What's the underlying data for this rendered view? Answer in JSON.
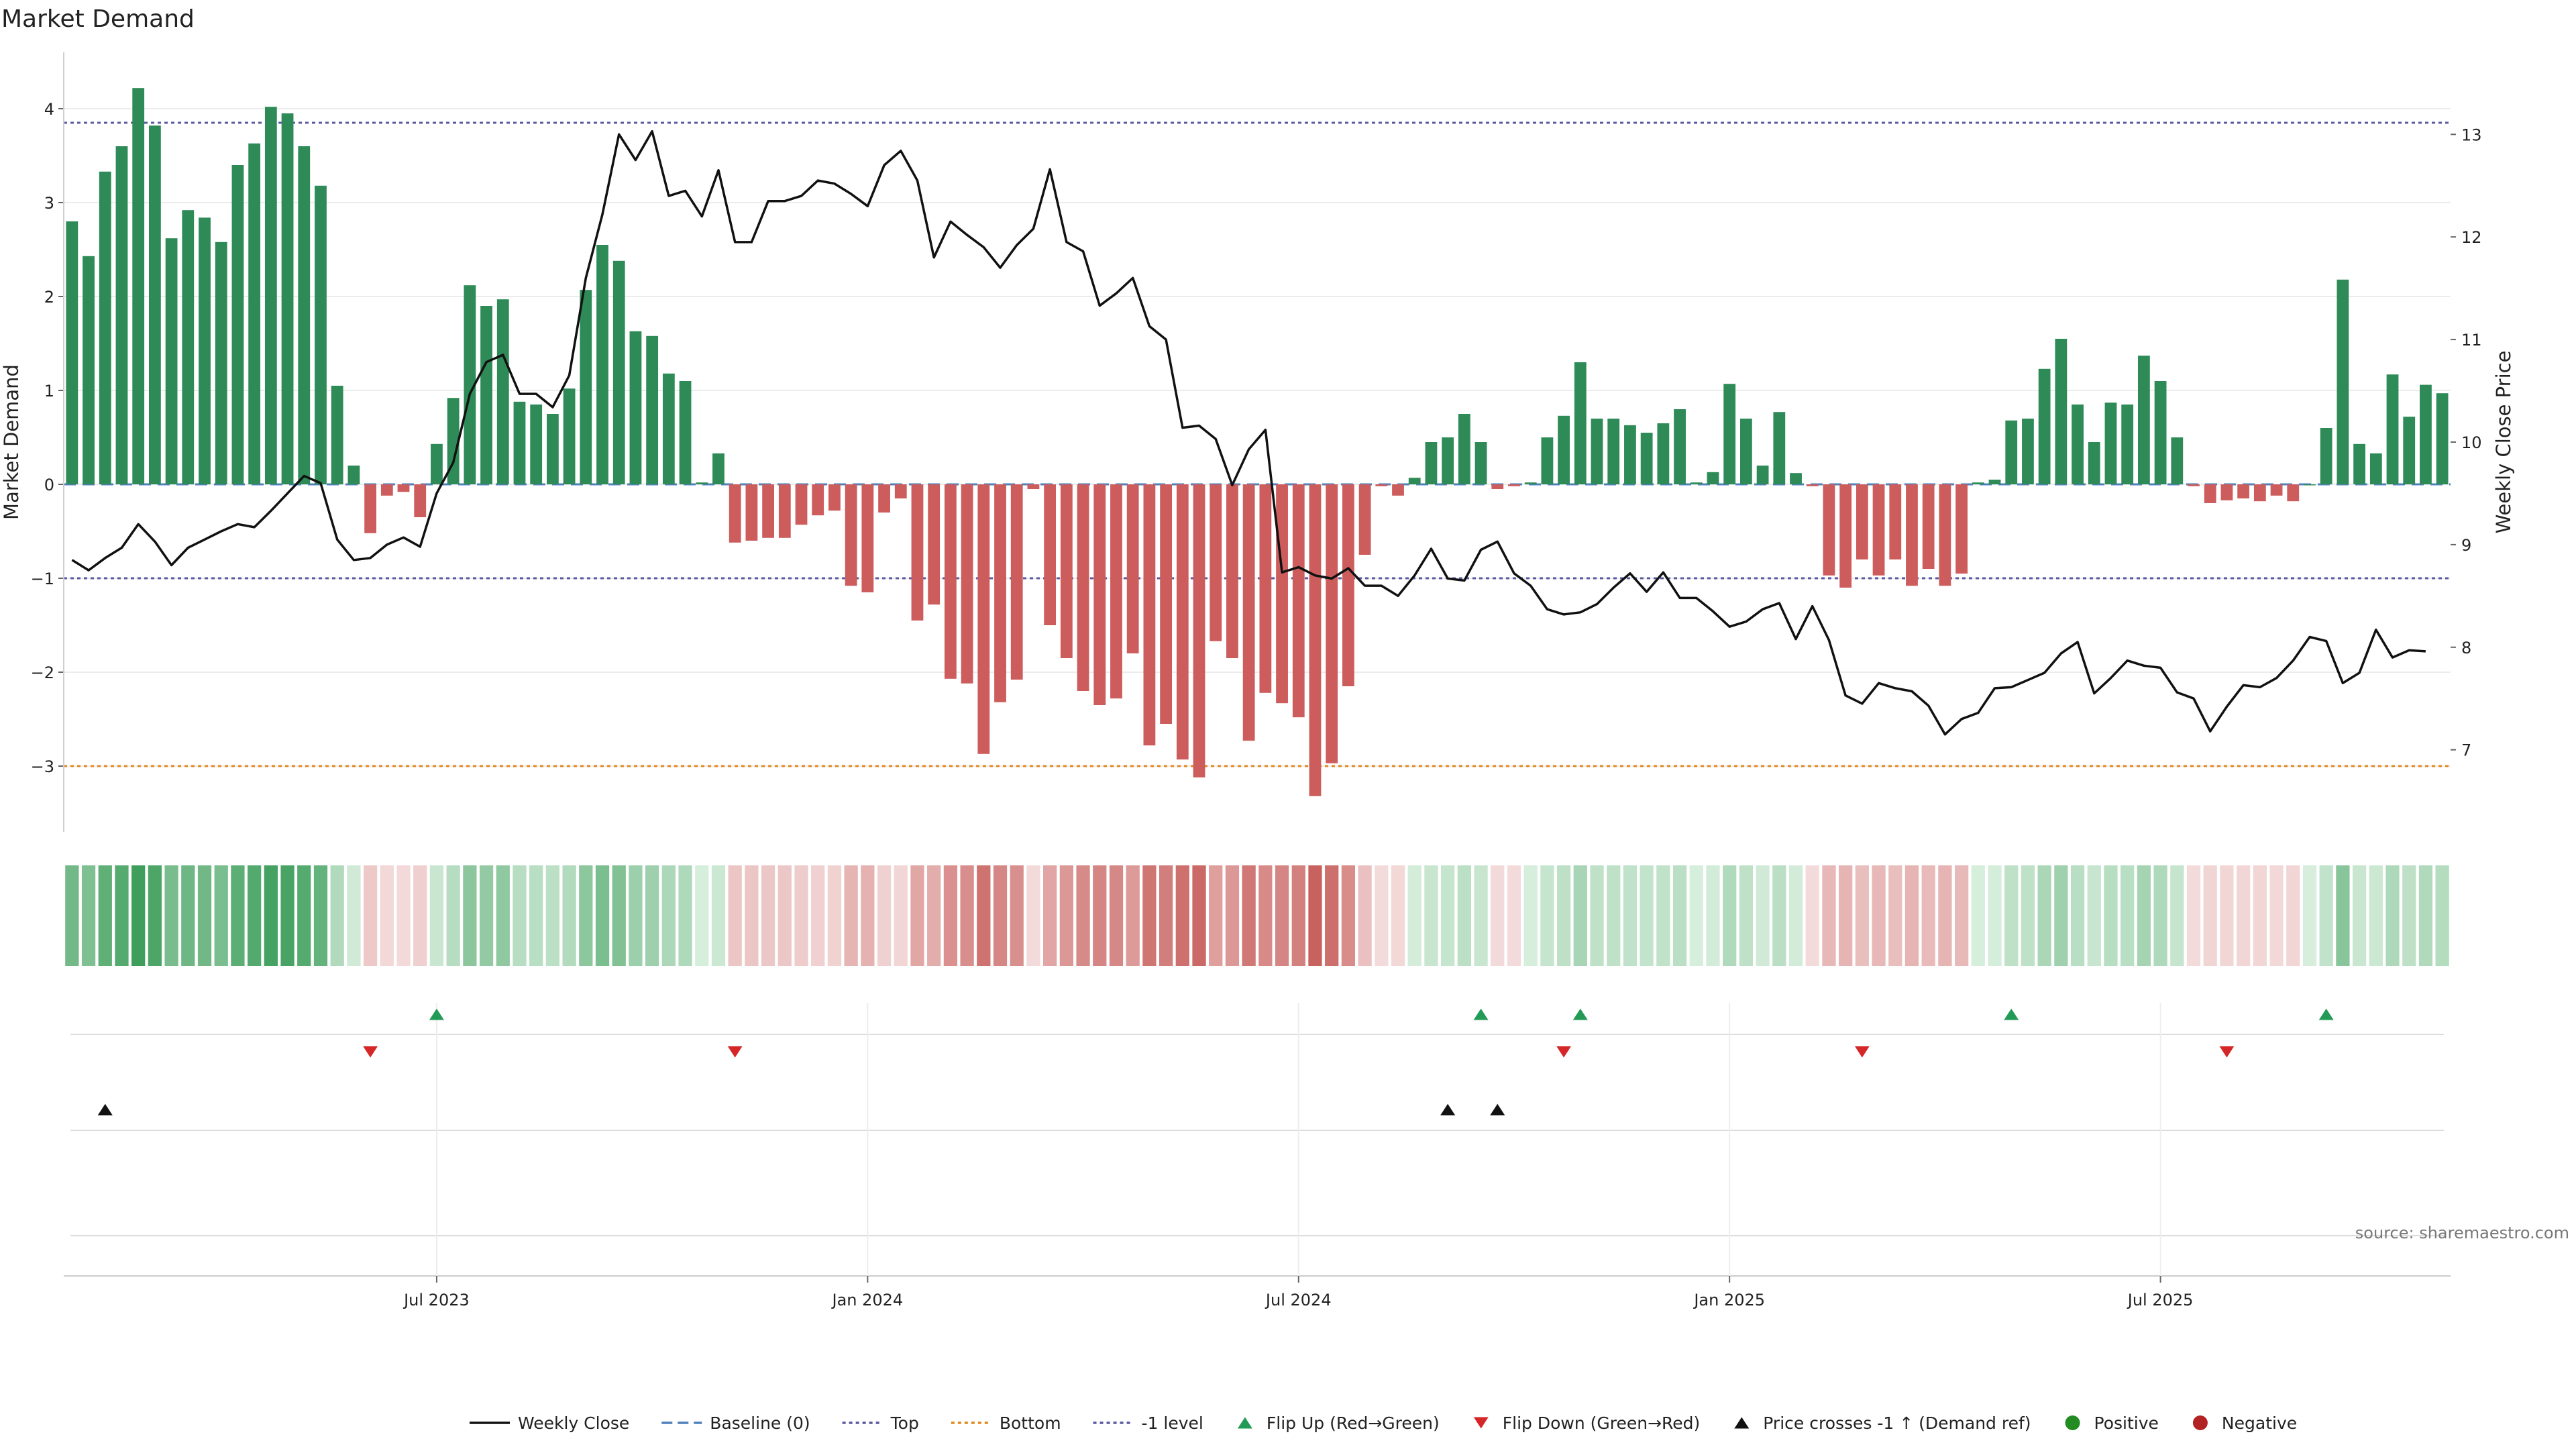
{
  "chart_data": {
    "type": "bar",
    "title": "Market Demand",
    "ylabel": "Market Demand",
    "y2label": "Weekly Close Price",
    "ylim": [
      -3.7,
      4.6
    ],
    "y_ticks": [
      4,
      3,
      2,
      1,
      0,
      -1,
      -2,
      -3
    ],
    "y_tick_labels": [
      "4",
      "3",
      "2",
      "1",
      "0",
      "−1",
      "−2",
      "−3"
    ],
    "y2lim": [
      6.2,
      13.8
    ],
    "y2_ticks": [
      13,
      12,
      11,
      10,
      9,
      8,
      7
    ],
    "y2_tick_labels": [
      "13",
      "12",
      "11",
      "10",
      "9",
      "8",
      "7"
    ],
    "x_ticks": [
      22,
      48,
      74,
      100,
      126
    ],
    "x_tick_labels": [
      "Jul 2023",
      "Jan 2024",
      "Jul 2024",
      "Jan 2025",
      "Jul 2025"
    ],
    "levels": {
      "top": 3.85,
      "bottom": -3.0,
      "minus_one": -1.0,
      "baseline": 0
    },
    "demand": [
      2.8,
      2.43,
      3.33,
      3.6,
      4.22,
      3.82,
      2.62,
      2.92,
      2.84,
      2.58,
      3.4,
      3.63,
      4.02,
      3.95,
      3.6,
      3.18,
      1.05,
      0.2,
      -0.52,
      -0.12,
      -0.08,
      -0.35,
      0.43,
      0.92,
      2.12,
      1.9,
      1.97,
      0.88,
      0.85,
      0.75,
      1.02,
      2.07,
      2.55,
      2.38,
      1.63,
      1.58,
      1.18,
      1.1,
      0.02,
      0.33,
      -0.62,
      -0.6,
      -0.57,
      -0.57,
      -0.43,
      -0.33,
      -0.28,
      -1.08,
      -1.15,
      -0.3,
      -0.15,
      -1.45,
      -1.28,
      -2.07,
      -2.12,
      -2.87,
      -2.32,
      -2.08,
      -0.05,
      -1.5,
      -1.85,
      -2.2,
      -2.35,
      -2.28,
      -1.8,
      -2.78,
      -2.55,
      -2.93,
      -3.12,
      -1.67,
      -1.85,
      -2.73,
      -2.22,
      -2.33,
      -2.48,
      -3.32,
      -2.97,
      -2.15,
      -0.75,
      -0.02,
      -0.12,
      0.07,
      0.45,
      0.5,
      0.75,
      0.45,
      -0.05,
      -0.02,
      0.02,
      0.5,
      0.73,
      1.3,
      0.7,
      0.7,
      0.63,
      0.55,
      0.65,
      0.8,
      0.02,
      0.13,
      1.07,
      0.7,
      0.2,
      0.77,
      0.12,
      -0.02,
      -0.97,
      -1.1,
      -0.8,
      -0.97,
      -0.8,
      -1.08,
      -0.9,
      -1.08,
      -0.95,
      0.02,
      0.05,
      0.68,
      0.7,
      1.23,
      1.55,
      0.85,
      0.45,
      0.87,
      0.85,
      1.37,
      1.1,
      0.5,
      -0.02,
      -0.2,
      -0.17,
      -0.15,
      -0.18,
      -0.12,
      -0.18,
      0.0,
      0.6,
      2.18,
      0.43,
      0.33,
      1.17,
      0.72,
      1.06,
      0.97
    ],
    "weekly_close": [
      8.85,
      8.75,
      8.87,
      8.97,
      9.2,
      9.03,
      8.8,
      8.97,
      9.05,
      9.13,
      9.2,
      9.17,
      9.33,
      9.5,
      9.67,
      9.6,
      9.05,
      8.85,
      8.87,
      9.0,
      9.07,
      8.98,
      9.5,
      9.8,
      10.47,
      10.78,
      10.85,
      10.47,
      10.47,
      10.34,
      10.65,
      11.6,
      12.22,
      13.0,
      12.75,
      13.03,
      12.4,
      12.45,
      12.2,
      12.65,
      11.95,
      11.95,
      12.35,
      12.35,
      12.4,
      12.55,
      12.52,
      12.42,
      12.3,
      12.7,
      12.84,
      12.55,
      11.8,
      12.15,
      12.02,
      11.9,
      11.7,
      11.92,
      12.08,
      12.66,
      11.95,
      11.86,
      11.33,
      11.45,
      11.6,
      11.13,
      11.0,
      10.14,
      10.16,
      10.03,
      9.58,
      9.93,
      10.12,
      8.73,
      8.78,
      8.7,
      8.67,
      8.77,
      8.6,
      8.6,
      8.5,
      8.7,
      8.96,
      8.67,
      8.65,
      8.95,
      9.03,
      8.72,
      8.6,
      8.37,
      8.32,
      8.34,
      8.42,
      8.58,
      8.72,
      8.54,
      8.73,
      8.48,
      8.48,
      8.35,
      8.2,
      8.25,
      8.37,
      8.43,
      8.08,
      8.4,
      8.07,
      7.53,
      7.45,
      7.65,
      7.6,
      7.57,
      7.43,
      7.15,
      7.3,
      7.36,
      7.6,
      7.61,
      7.68,
      7.75,
      7.94,
      8.05,
      7.55,
      7.7,
      7.87,
      7.82,
      7.8,
      7.56,
      7.5,
      7.18,
      7.42,
      7.63,
      7.61,
      7.7,
      7.87,
      8.1,
      8.06,
      7.65,
      7.75,
      8.17,
      7.9,
      7.97,
      7.96
    ],
    "flip_up_weeks": [
      22,
      85,
      91,
      117,
      136
    ],
    "flip_down_weeks": [
      18,
      40,
      90,
      108,
      130
    ],
    "price_cross_weeks": [
      2,
      83,
      86
    ],
    "legend": [
      {
        "label": "Weekly Close",
        "kind": "line",
        "color": "#111111"
      },
      {
        "label": "Baseline (0)",
        "kind": "dashed",
        "color": "#4f81bd"
      },
      {
        "label": "Top",
        "kind": "dotted",
        "color": "#5a5aa0"
      },
      {
        "label": "Bottom",
        "kind": "dotted",
        "color": "#e08a1e"
      },
      {
        "label": "-1 level",
        "kind": "dotted",
        "color": "#5a5aa0"
      },
      {
        "label": "Flip Up (Red→Green)",
        "kind": "tri-up",
        "color": "#239b56"
      },
      {
        "label": "Flip Down (Green→Red)",
        "kind": "tri-down",
        "color": "#d62728"
      },
      {
        "label": "Price crosses -1 ↑ (Demand ref)",
        "kind": "tri-up",
        "color": "#111111"
      },
      {
        "label": "Positive",
        "kind": "dot",
        "color": "#228b22"
      },
      {
        "label": "Negative",
        "kind": "dot",
        "color": "#b22222"
      }
    ],
    "source": "source: sharemaestro.com",
    "colors": {
      "positive_bar": "#2e8b57",
      "negative_bar": "#cd5c5c",
      "price_line": "#111111",
      "baseline": "#4f81bd",
      "top_level": "#5a5aa0",
      "bottom_level": "#e08a1e",
      "flip_up": "#239b56",
      "flip_down": "#d62728"
    }
  }
}
